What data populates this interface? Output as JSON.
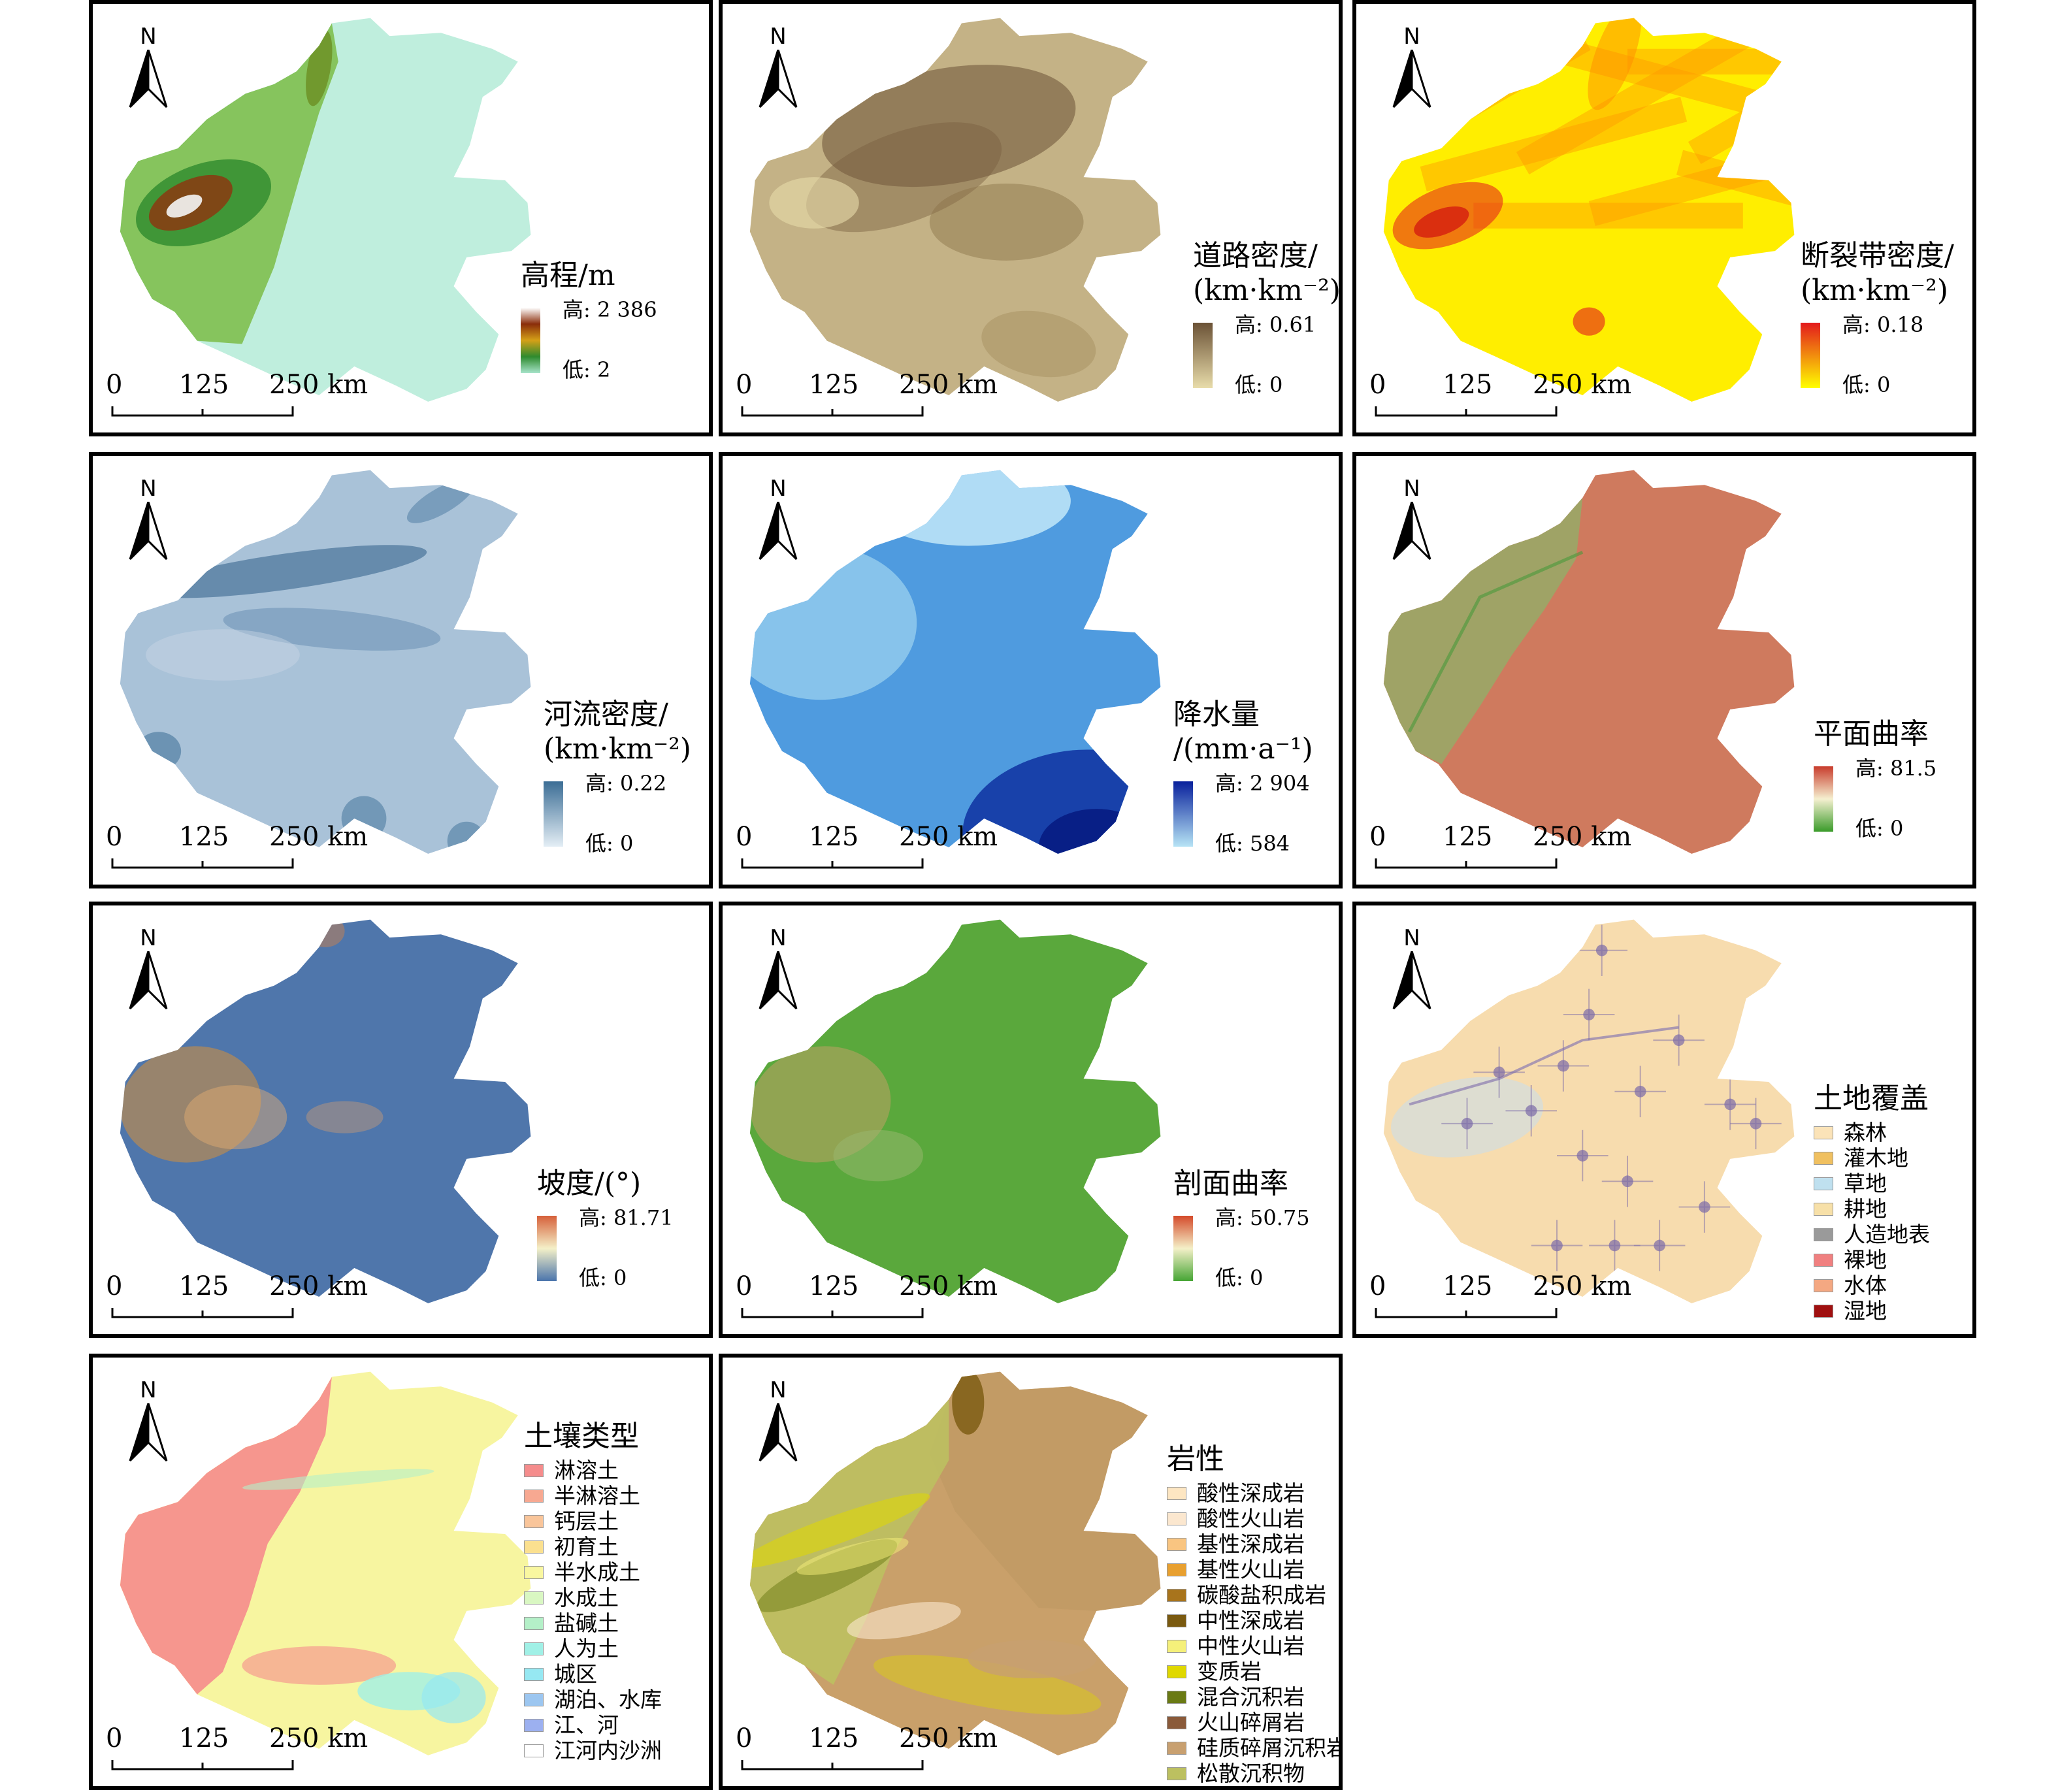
{
  "panels": [
    {
      "id": "elevation",
      "title": [
        "高程/m"
      ],
      "legend_type": "gradient",
      "high": "高: 2 386",
      "low": "低: 2",
      "gradient": [
        "#ffffff",
        "#8b2d0a",
        "#d4a017",
        "#2e8b2e",
        "#a6e3c9"
      ],
      "map_fill": "#bfeedd",
      "overlay": "mountain-green",
      "scale": [
        "0",
        "125",
        "250 km"
      ]
    },
    {
      "id": "road",
      "title": [
        "道路密度/",
        "(km·km⁻²)"
      ],
      "legend_type": "gradient",
      "high": "高: 0.61",
      "low": "低: 0",
      "gradient": [
        "#6b5236",
        "#e8dcaa"
      ],
      "map_fill": "#c4b286",
      "overlay": "dark-brown",
      "scale": [
        "0",
        "125",
        "250 km"
      ]
    },
    {
      "id": "fault",
      "title": [
        "断裂带密度/",
        "(km·km⁻²)"
      ],
      "legend_type": "gradient",
      "high": "高: 0.18",
      "low": "低: 0",
      "gradient": [
        "#e31a1c",
        "#ffff00"
      ],
      "map_fill": "#ffee00",
      "overlay": "orange-bands",
      "scale": [
        "0",
        "125",
        "250 km"
      ]
    },
    {
      "id": "river",
      "title": [
        "河流密度/",
        "(km·km⁻²)"
      ],
      "legend_type": "gradient",
      "high": "高: 0.22",
      "low": "低: 0",
      "gradient": [
        "#3b6d95",
        "#e4eef5"
      ],
      "map_fill": "#a9c2d8",
      "overlay": "blue-streaks",
      "scale": [
        "0",
        "125",
        "250 km"
      ]
    },
    {
      "id": "precip",
      "title": [
        "降水量",
        "/(mm·a⁻¹)"
      ],
      "legend_type": "gradient",
      "high": "高: 2 904",
      "low": "低: 584",
      "gradient": [
        "#08209c",
        "#b7e4f5"
      ],
      "map_fill": "#4f9bdf",
      "overlay": "blue-south",
      "scale": [
        "0",
        "125",
        "250 km"
      ]
    },
    {
      "id": "plan_curv",
      "title": [
        "平面曲率"
      ],
      "legend_type": "gradient",
      "high": "高: 81.5",
      "low": "低: 0",
      "gradient": [
        "#c83c2c",
        "#f5f0d0",
        "#3a9b2a"
      ],
      "map_fill": "#cf7a5e",
      "overlay": "green-west",
      "scale": [
        "0",
        "125",
        "250 km"
      ]
    },
    {
      "id": "slope",
      "title": [
        "坡度/(°)"
      ],
      "legend_type": "gradient",
      "high": "高: 81.71",
      "low": "低: 0",
      "gradient": [
        "#d6603a",
        "#f4f0c8",
        "#4a74ac"
      ],
      "map_fill": "#4f76ab",
      "overlay": "orange-west",
      "scale": [
        "0",
        "125",
        "250 km"
      ]
    },
    {
      "id": "prof_curv",
      "title": [
        "剖面曲率"
      ],
      "legend_type": "gradient",
      "high": "高: 50.75",
      "low": "低: 0",
      "gradient": [
        "#d44a2a",
        "#f4f0c8",
        "#45a534"
      ],
      "map_fill": "#5aa83c",
      "overlay": "tan-west",
      "scale": [
        "0",
        "125",
        "250 km"
      ]
    },
    {
      "id": "landcover",
      "title": [
        "土地覆盖"
      ],
      "legend_type": "categorical",
      "map_fill": "#f7dcae",
      "overlay": "purple-dots",
      "categories": [
        {
          "label": "森林",
          "color": "#fbe3b8"
        },
        {
          "label": "灌木地",
          "color": "#f0c060"
        },
        {
          "label": "草地",
          "color": "#bfe0ef"
        },
        {
          "label": "耕地",
          "color": "#f7e0a8"
        },
        {
          "label": "人造地表",
          "color": "#9a9a9a"
        },
        {
          "label": "裸地",
          "color": "#f08080"
        },
        {
          "label": "水体",
          "color": "#f4a882"
        },
        {
          "label": "湿地",
          "color": "#a01010"
        }
      ],
      "scale": [
        "0",
        "125",
        "250 km"
      ]
    },
    {
      "id": "soil",
      "title": [
        "土壤类型"
      ],
      "legend_type": "categorical",
      "map_fill": "#f7f5a0",
      "overlay": "pink-west",
      "categories": [
        {
          "label": "淋溶土",
          "color": "#f58c8c"
        },
        {
          "label": "半淋溶土",
          "color": "#f7a891"
        },
        {
          "label": "钙层土",
          "color": "#f9c59a"
        },
        {
          "label": "初育土",
          "color": "#fbe08f"
        },
        {
          "label": "半水成土",
          "color": "#f9f7a0"
        },
        {
          "label": "水成土",
          "color": "#d9f7c2"
        },
        {
          "label": "盐碱土",
          "color": "#b4f0c8"
        },
        {
          "label": "人为土",
          "color": "#a0f0e6"
        },
        {
          "label": "城区",
          "color": "#96e8f2"
        },
        {
          "label": "湖泊、水库",
          "color": "#9cc6f0"
        },
        {
          "label": "江、河",
          "color": "#9cb0f0"
        },
        {
          "label": "江河内沙洲",
          "color": "#ffffff"
        }
      ],
      "scale": [
        "0",
        "125",
        "250 km"
      ]
    },
    {
      "id": "lithology",
      "title": [
        "岩性"
      ],
      "legend_type": "categorical",
      "map_fill": "#c9a06a",
      "overlay": "litho",
      "categories": [
        {
          "label": "酸性深成岩",
          "color": "#fde6c2"
        },
        {
          "label": "酸性火山岩",
          "color": "#fbe7cf"
        },
        {
          "label": "基性深成岩",
          "color": "#f9c581"
        },
        {
          "label": "基性火山岩",
          "color": "#e8a030"
        },
        {
          "label": "碳酸盐积成岩",
          "color": "#a8741c"
        },
        {
          "label": "中性深成岩",
          "color": "#7a5a10"
        },
        {
          "label": "中性火山岩",
          "color": "#f5f07a"
        },
        {
          "label": "变质岩",
          "color": "#e0d800"
        },
        {
          "label": "混合沉积岩",
          "color": "#6a7a14"
        },
        {
          "label": "火山碎屑岩",
          "color": "#8a5a3a"
        },
        {
          "label": "硅质碎屑沉积岩",
          "color": "#c8a070"
        },
        {
          "label": "松散沉积物",
          "color": "#bcc060"
        }
      ],
      "scale": [
        "0",
        "125",
        "250 km"
      ]
    }
  ],
  "north_label": "N"
}
